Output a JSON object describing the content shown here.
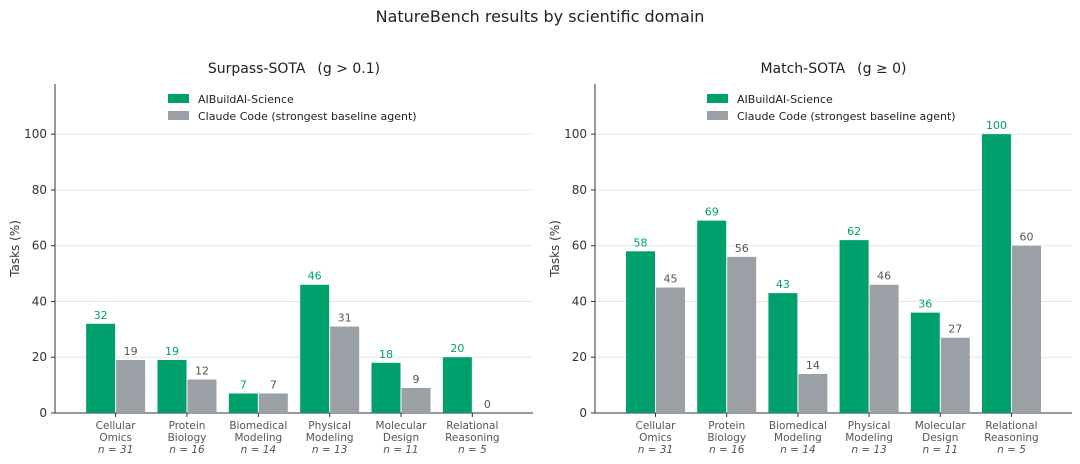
{
  "figure_title": "NatureBench results by scientific domain",
  "colors": {
    "aibuild": "#00a06e",
    "claude": "#9aa0a6"
  },
  "chart_data": [
    {
      "type": "bar",
      "title_text": "Surpass-SOTA",
      "title_condition": "(g > 0.1)",
      "ylabel": "Tasks (%)",
      "ylim": [
        0,
        118
      ],
      "yticks": [
        "0",
        "20",
        "40",
        "60",
        "80",
        "100"
      ],
      "grid": true,
      "legend_position": "top-center",
      "categories": [
        {
          "line1": "Cellular",
          "line2": "Omics",
          "n": "n = 31"
        },
        {
          "line1": "Protein",
          "line2": "Biology",
          "n": "n = 16"
        },
        {
          "line1": "Biomedical",
          "line2": "Modeling",
          "n": "n = 14"
        },
        {
          "line1": "Physical",
          "line2": "Modeling",
          "n": "n = 13"
        },
        {
          "line1": "Molecular",
          "line2": "Design",
          "n": "n = 11"
        },
        {
          "line1": "Relational",
          "line2": "Reasoning",
          "n": "n = 5"
        }
      ],
      "series": [
        {
          "name": "AIBuildAI-Science",
          "values": [
            32,
            19,
            7,
            46,
            18,
            20
          ]
        },
        {
          "name": "Claude Code (strongest baseline agent)",
          "values": [
            19,
            12,
            7,
            31,
            9,
            0
          ]
        }
      ]
    },
    {
      "type": "bar",
      "title_text": "Match-SOTA",
      "title_condition": "(g ≥ 0)",
      "ylabel": "Tasks (%)",
      "ylim": [
        0,
        118
      ],
      "yticks": [
        "0",
        "20",
        "40",
        "60",
        "80",
        "100"
      ],
      "grid": true,
      "legend_position": "top-center",
      "categories": [
        {
          "line1": "Cellular",
          "line2": "Omics",
          "n": "n = 31"
        },
        {
          "line1": "Protein",
          "line2": "Biology",
          "n": "n = 16"
        },
        {
          "line1": "Biomedical",
          "line2": "Modeling",
          "n": "n = 14"
        },
        {
          "line1": "Physical",
          "line2": "Modeling",
          "n": "n = 13"
        },
        {
          "line1": "Molecular",
          "line2": "Design",
          "n": "n = 11"
        },
        {
          "line1": "Relational",
          "line2": "Reasoning",
          "n": "n = 5"
        }
      ],
      "series": [
        {
          "name": "AIBuildAI-Science",
          "values": [
            58,
            69,
            43,
            62,
            36,
            100
          ]
        },
        {
          "name": "Claude Code (strongest baseline agent)",
          "values": [
            45,
            56,
            14,
            46,
            27,
            60
          ]
        }
      ]
    }
  ]
}
